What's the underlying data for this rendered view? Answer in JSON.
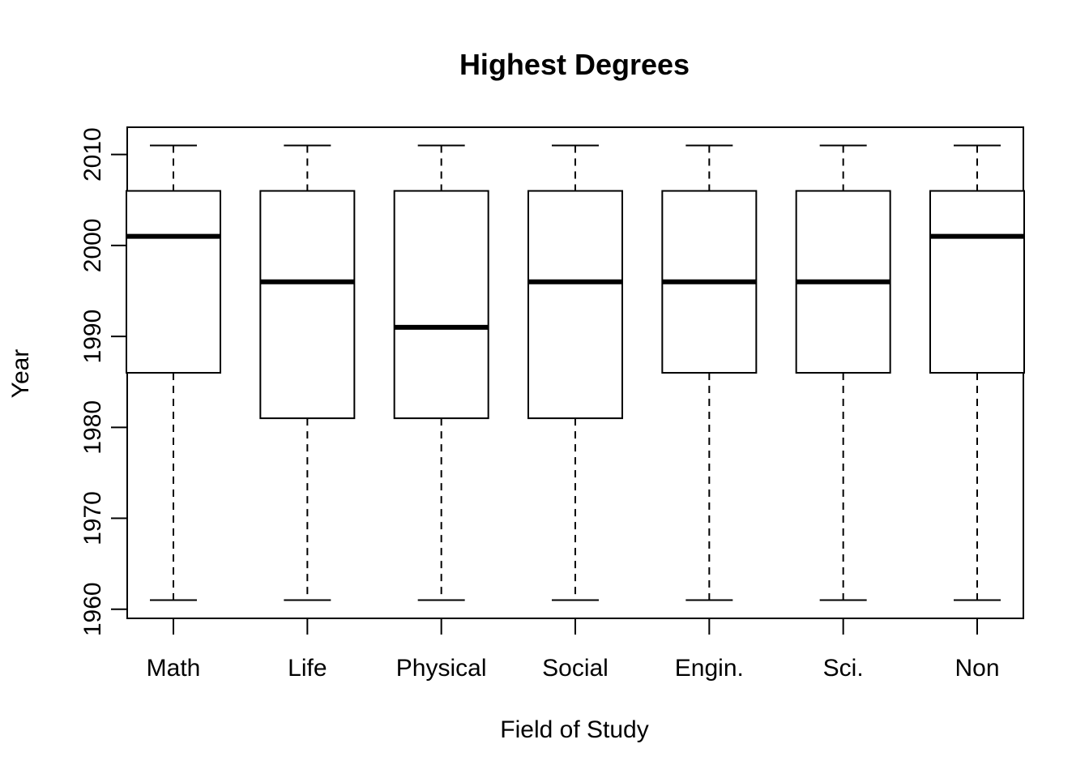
{
  "chart_data": {
    "type": "box",
    "title": "Highest Degrees",
    "xlabel": "Field of Study",
    "ylabel": "Year",
    "categories": [
      "Math",
      "Life",
      "Physical",
      "Social",
      "Engin.",
      "Sci.",
      "Non"
    ],
    "boxes": [
      {
        "category": "Math",
        "min": 1961,
        "q1": 1986,
        "median": 2001,
        "q3": 2006,
        "max": 2011
      },
      {
        "category": "Life",
        "min": 1961,
        "q1": 1981,
        "median": 1996,
        "q3": 2006,
        "max": 2011
      },
      {
        "category": "Physical",
        "min": 1961,
        "q1": 1981,
        "median": 1991,
        "q3": 2006,
        "max": 2011
      },
      {
        "category": "Social",
        "min": 1961,
        "q1": 1981,
        "median": 1996,
        "q3": 2006,
        "max": 2011
      },
      {
        "category": "Engin.",
        "min": 1961,
        "q1": 1986,
        "median": 1996,
        "q3": 2006,
        "max": 2011
      },
      {
        "category": "Sci.",
        "min": 1961,
        "q1": 1986,
        "median": 1996,
        "q3": 2006,
        "max": 2011
      },
      {
        "category": "Non",
        "min": 1961,
        "q1": 1986,
        "median": 2001,
        "q3": 2006,
        "max": 2011
      }
    ],
    "yticks": [
      1960,
      1970,
      1980,
      1990,
      2000,
      2010
    ],
    "ylim": [
      1959,
      2013
    ],
    "grid": false,
    "legend": "none",
    "colors": {
      "box_fill": "#ffffff",
      "stroke": "#000000"
    }
  }
}
